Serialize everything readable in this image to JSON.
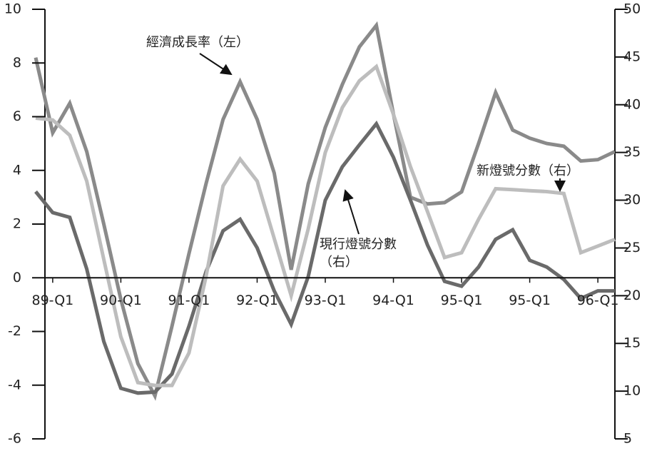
{
  "chart_data": {
    "type": "line",
    "categories": [
      null,
      "89-Q1",
      null,
      null,
      null,
      "90-Q1",
      null,
      null,
      null,
      "91-Q1",
      null,
      null,
      null,
      "92-Q1",
      null,
      null,
      null,
      "93-Q1",
      null,
      null,
      null,
      "94-Q1",
      null,
      null,
      null,
      "95-Q1",
      null,
      null,
      null,
      "95-Q1",
      null,
      null,
      null,
      "96-Q1",
      null
    ],
    "series": [
      {
        "name": "經濟成長率（左）",
        "color": "#8a8a8a",
        "values": [
          8.2,
          5.4,
          6.5,
          4.7,
          2.0,
          -0.8,
          -3.2,
          -4.4,
          -1.8,
          0.9,
          3.5,
          5.9,
          7.3,
          5.9,
          3.9,
          0.3,
          3.5,
          5.6,
          7.2,
          8.6,
          9.4,
          6.1,
          3.0,
          2.75,
          2.8,
          3.2,
          5.0,
          6.9,
          5.5,
          5.2,
          5.0,
          4.9,
          4.35,
          4.4,
          4.7
        ]
      },
      {
        "name": "現行燈號分數（右）",
        "color": "#6a6a6a",
        "axis": "y2",
        "values": [
          30.9,
          28.7,
          28.2,
          22.8,
          15.2,
          10.3,
          9.8,
          9.9,
          11.8,
          16.8,
          22.5,
          26.8,
          28.0,
          25.0,
          20.5,
          17.0,
          22.0,
          30.0,
          33.5,
          35.8,
          38.0,
          34.5,
          30.0,
          25.3,
          21.5,
          21.0,
          23.0,
          25.9,
          26.9,
          23.7,
          23.0,
          21.7,
          19.7,
          20.5,
          20.5
        ]
      },
      {
        "name": "新燈號分數（右）",
        "color": "#bdbdbd",
        "axis": "y2",
        "values": [
          38.6,
          38.4,
          36.8,
          32.0,
          23.8,
          15.7,
          10.9,
          10.6,
          10.6,
          14.0,
          22.0,
          31.5,
          34.3,
          32.0,
          26.0,
          20.0,
          27.0,
          35.0,
          39.7,
          42.5,
          44.0,
          39.0,
          33.5,
          28.8,
          24.0,
          24.5,
          28.0,
          31.2,
          31.1,
          31.0,
          30.9,
          30.7,
          24.5,
          25.2,
          25.9
        ]
      }
    ],
    "ylim": [
      -6,
      10
    ],
    "yticks": [
      -6,
      -4,
      -2,
      0,
      2,
      4,
      6,
      8,
      10
    ],
    "y2lim": [
      5,
      50
    ],
    "y2ticks": [
      5,
      10,
      15,
      20,
      25,
      30,
      35,
      40,
      45,
      50
    ],
    "annotations": [
      "經濟成長率（左）",
      "現行燈號分數",
      "（右）",
      "新燈號分數（右）"
    ]
  }
}
